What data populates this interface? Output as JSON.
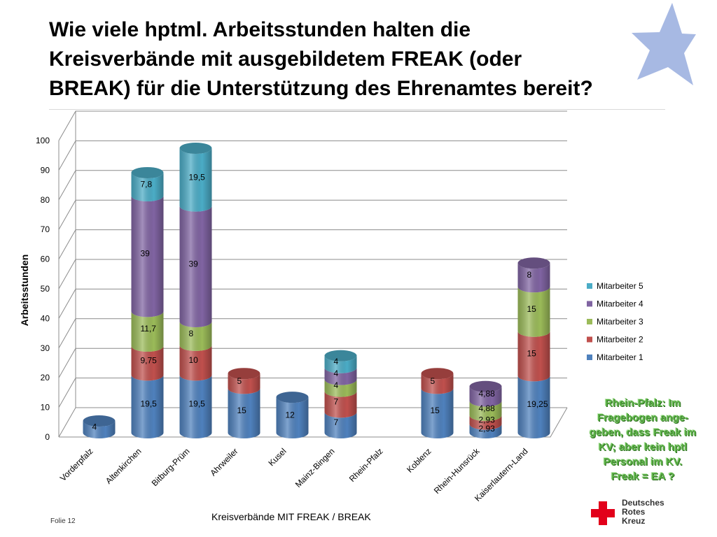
{
  "title": "Wie viele hptml. Arbeitsstunden halten die Kreisverbände mit ausgebildetem FREAK (oder BREAK) für die Unterstützung des Ehrenamtes bereit?",
  "callout": "Rhein-Pfalz: Im\nFragebogen ange-\ngeben, dass Freak im\nKV; aber kein hptl\nPersonal im KV.\nFreak = EA ?",
  "footer": {
    "slide_label": "Folie 12",
    "xaxis_caption": "Kreisverbände MIT  FREAK / BREAK",
    "logo_text": "Deutsches\nRotes\nKreuz"
  },
  "colors": {
    "m1": "#4f81bd",
    "m2": "#c0504d",
    "m3": "#9bbb59",
    "m4": "#8064a2",
    "m5": "#4bacc6",
    "star": "#a7b9e3",
    "cross": "#e2001a",
    "callout": "#5cb247"
  },
  "chart_data": {
    "type": "bar",
    "stacked": true,
    "style": "3d-cylinder",
    "title": "",
    "xlabel": "",
    "ylabel": "Arbeitsstunden",
    "ylim": [
      0,
      100
    ],
    "yticks": [
      0,
      10,
      20,
      30,
      40,
      50,
      60,
      70,
      80,
      90,
      100
    ],
    "legend_position": "right",
    "categories": [
      "Vorderpfalz",
      "Altenkirchen",
      "Bitburg-Prüm",
      "Ahrweiler",
      "Kusel",
      "Mainz-Bingen",
      "Rhein-Pfalz",
      "Koblenz",
      "Rhein-Hunsrück",
      "Kaiserlautern-Land"
    ],
    "series": [
      {
        "name": "Mitarbeiter 1",
        "color": "#4f81bd",
        "values": [
          4,
          19.5,
          19.5,
          15,
          12,
          7,
          0,
          15,
          2.93,
          19.25
        ],
        "labels": [
          "4",
          "19,5",
          "19,5",
          "15",
          "12",
          "7",
          "",
          "15",
          "2,93",
          "19,25"
        ]
      },
      {
        "name": "Mitarbeiter 2",
        "color": "#c0504d",
        "values": [
          0,
          9.75,
          10,
          5,
          0,
          7,
          0,
          5,
          2.93,
          15
        ],
        "labels": [
          "",
          "9,75",
          "10",
          "5",
          "",
          "7",
          "",
          "5",
          "2,93",
          "15"
        ]
      },
      {
        "name": "Mitarbeiter 3",
        "color": "#9bbb59",
        "values": [
          0,
          11.7,
          8,
          0,
          0,
          4,
          0,
          0,
          4.88,
          15
        ],
        "labels": [
          "",
          "11,7",
          "8",
          "",
          "",
          "4",
          "",
          "",
          "4,88",
          "15"
        ]
      },
      {
        "name": "Mitarbeiter 4",
        "color": "#8064a2",
        "values": [
          0,
          39,
          39,
          0,
          0,
          4,
          0,
          0,
          4.88,
          8
        ],
        "labels": [
          "",
          "39",
          "39",
          "",
          "",
          "4",
          "",
          "",
          "4,88",
          "8"
        ]
      },
      {
        "name": "Mitarbeiter 5",
        "color": "#4bacc6",
        "values": [
          0,
          7.8,
          19.5,
          0,
          0,
          4,
          0,
          0,
          0,
          0
        ],
        "labels": [
          "",
          "7,8",
          "19,5",
          "",
          "",
          "4",
          "",
          "",
          "",
          ""
        ]
      }
    ]
  }
}
